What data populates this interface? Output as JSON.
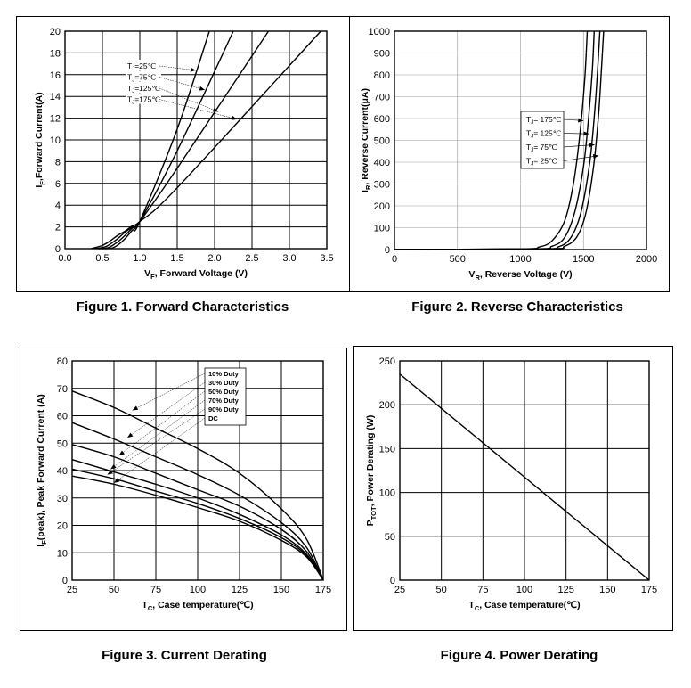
{
  "chart_data": [
    {
      "type": "line",
      "caption": "Figure 1. Forward Characteristics",
      "xlabel_main": "V",
      "xlabel_sub": "F",
      "xlabel_rest": ", Forward Voltage (V)",
      "ylabel_main": "I",
      "ylabel_sub": "F",
      "ylabel_rest": ",Forward Current(A)",
      "xlim": [
        0,
        3.5
      ],
      "ylim": [
        0,
        20
      ],
      "xticks": [
        "0.0",
        "0.5",
        "1.0",
        "1.5",
        "2.0",
        "2.5",
        "3.0",
        "3.5"
      ],
      "yticks": [
        "0",
        "2",
        "4",
        "6",
        "8",
        "10",
        "12",
        "14",
        "16",
        "18",
        "20"
      ],
      "grid": true,
      "series": [
        {
          "name": "Tj=25°C",
          "points": [
            [
              0.5,
              0
            ],
            [
              0.62,
              0.05
            ],
            [
              0.7,
              0.3
            ],
            [
              0.8,
              0.9
            ],
            [
              0.9,
              1.7
            ],
            [
              1.0,
              2.5
            ],
            [
              1.5,
              11.0
            ],
            [
              1.93,
              20.0
            ]
          ]
        },
        {
          "name": "Tj=75°C",
          "points": [
            [
              0.45,
              0
            ],
            [
              0.58,
              0.1
            ],
            [
              0.7,
              0.6
            ],
            [
              0.8,
              1.2
            ],
            [
              0.9,
              1.9
            ],
            [
              1.0,
              2.5
            ],
            [
              1.5,
              9.0
            ],
            [
              2.25,
              20.0
            ]
          ]
        },
        {
          "name": "Tj=125°C",
          "points": [
            [
              0.4,
              0
            ],
            [
              0.55,
              0.2
            ],
            [
              0.7,
              0.9
            ],
            [
              0.8,
              1.5
            ],
            [
              0.9,
              2.0
            ],
            [
              1.0,
              2.5
            ],
            [
              1.5,
              7.4
            ],
            [
              2.72,
              20.0
            ]
          ]
        },
        {
          "name": "Tj=175°C",
          "points": [
            [
              0.35,
              0
            ],
            [
              0.5,
              0.3
            ],
            [
              0.6,
              0.7
            ],
            [
              0.7,
              1.2
            ],
            [
              0.8,
              1.6
            ],
            [
              0.9,
              2.1
            ],
            [
              1.0,
              2.5
            ],
            [
              1.5,
              5.6
            ],
            [
              3.42,
              20.0
            ]
          ]
        }
      ],
      "legend_labels": [
        {
          "main": "T",
          "sub": "J",
          "rest": "=25℃"
        },
        {
          "main": "T",
          "sub": "J",
          "rest": "=75℃"
        },
        {
          "main": "T",
          "sub": "J",
          "rest": "=125℃"
        },
        {
          "main": "T",
          "sub": "J",
          "rest": "=175℃"
        }
      ],
      "legend_placement": "upper-left"
    },
    {
      "type": "line",
      "caption": "Figure 2. Reverse Characteristics",
      "xlabel_main": "V",
      "xlabel_sub": "R",
      "xlabel_rest": ", Reverse Voltage (V)",
      "ylabel_main": "I",
      "ylabel_sub": "R",
      "ylabel_rest": ", Reverse Current(μA)",
      "xlim": [
        0,
        2000
      ],
      "ylim": [
        0,
        1000
      ],
      "xticks": [
        "0",
        "500",
        "1000",
        "1500",
        "2000"
      ],
      "yticks": [
        "0",
        "100",
        "200",
        "300",
        "400",
        "500",
        "600",
        "700",
        "800",
        "900",
        "1000"
      ],
      "grid": true,
      "series": [
        {
          "name": "TJ= 175°C",
          "points": [
            [
              0,
              0
            ],
            [
              1000,
              3
            ],
            [
              1150,
              12
            ],
            [
              1250,
              40
            ],
            [
              1350,
              130
            ],
            [
              1420,
              300
            ],
            [
              1470,
              520
            ],
            [
              1510,
              780
            ],
            [
              1530,
              1000
            ]
          ]
        },
        {
          "name": "TJ= 125°C",
          "points": [
            [
              0,
              0
            ],
            [
              1100,
              3
            ],
            [
              1250,
              15
            ],
            [
              1350,
              55
            ],
            [
              1430,
              170
            ],
            [
              1500,
              380
            ],
            [
              1540,
              600
            ],
            [
              1570,
              820
            ],
            [
              1585,
              1000
            ]
          ]
        },
        {
          "name": "TJ= 75°C",
          "points": [
            [
              0,
              0
            ],
            [
              1150,
              3
            ],
            [
              1300,
              12
            ],
            [
              1400,
              55
            ],
            [
              1480,
              170
            ],
            [
              1550,
              400
            ],
            [
              1590,
              640
            ],
            [
              1615,
              850
            ],
            [
              1630,
              1000
            ]
          ]
        },
        {
          "name": "TJ= 25°C",
          "points": [
            [
              0,
              0
            ],
            [
              1200,
              3
            ],
            [
              1350,
              15
            ],
            [
              1450,
              60
            ],
            [
              1520,
              170
            ],
            [
              1580,
              380
            ],
            [
              1620,
              620
            ],
            [
              1645,
              850
            ],
            [
              1660,
              1000
            ]
          ]
        }
      ],
      "legend_labels": [
        {
          "main": "T",
          "sub": "J",
          "rest": "= 175℃"
        },
        {
          "main": "T",
          "sub": "J",
          "rest": "= 125℃"
        },
        {
          "main": "T",
          "sub": "J",
          "rest": "= 75℃"
        },
        {
          "main": "T",
          "sub": "J",
          "rest": "= 25℃"
        }
      ],
      "legend_placement": "center-right"
    },
    {
      "type": "line",
      "caption": "Figure 3. Current Derating",
      "xlabel_main": "T",
      "xlabel_sub": "C",
      "xlabel_rest": ", Case temperature(℃)",
      "ylabel_main": "I",
      "ylabel_sub": "F",
      "ylabel_rest": "(peak), Peak Forward Current (A)",
      "xlim": [
        25,
        175
      ],
      "ylim": [
        0,
        80
      ],
      "xticks": [
        "25",
        "50",
        "75",
        "100",
        "125",
        "150",
        "175"
      ],
      "yticks": [
        "0",
        "10",
        "20",
        "30",
        "40",
        "50",
        "60",
        "70",
        "80"
      ],
      "grid": true,
      "series": [
        {
          "name": "10% Duty",
          "points": [
            [
              25,
              69
            ],
            [
              50,
              63
            ],
            [
              75,
              55.5
            ],
            [
              100,
              48
            ],
            [
              125,
              39
            ],
            [
              150,
              26
            ],
            [
              165,
              15
            ],
            [
              175,
              0
            ]
          ]
        },
        {
          "name": "30% Duty",
          "points": [
            [
              25,
              57.5
            ],
            [
              50,
              51.5
            ],
            [
              75,
              45
            ],
            [
              100,
              38.5
            ],
            [
              125,
              31
            ],
            [
              150,
              21
            ],
            [
              165,
              12
            ],
            [
              175,
              0
            ]
          ]
        },
        {
          "name": "50% Duty",
          "points": [
            [
              25,
              49.5
            ],
            [
              50,
              45
            ],
            [
              75,
              39
            ],
            [
              100,
              33
            ],
            [
              125,
              27
            ],
            [
              150,
              18.5
            ],
            [
              165,
              10.5
            ],
            [
              175,
              0
            ]
          ]
        },
        {
          "name": "70% Duty",
          "points": [
            [
              25,
              44
            ],
            [
              50,
              39.5
            ],
            [
              75,
              35
            ],
            [
              100,
              30
            ],
            [
              125,
              24
            ],
            [
              150,
              16.5
            ],
            [
              165,
              9.5
            ],
            [
              175,
              0
            ]
          ]
        },
        {
          "name": "90% Duty",
          "points": [
            [
              25,
              40.5
            ],
            [
              50,
              37
            ],
            [
              75,
              32.5
            ],
            [
              100,
              28
            ],
            [
              125,
              22.5
            ],
            [
              150,
              15.5
            ],
            [
              165,
              9
            ],
            [
              175,
              0
            ]
          ]
        },
        {
          "name": "DC",
          "points": [
            [
              25,
              38
            ],
            [
              50,
              35
            ],
            [
              75,
              31
            ],
            [
              100,
              26.5
            ],
            [
              125,
              21.5
            ],
            [
              150,
              14.5
            ],
            [
              165,
              8.5
            ],
            [
              175,
              0
            ]
          ]
        }
      ],
      "legend_labels": [
        "10% Duty",
        "30% Duty",
        "50% Duty",
        "70% Duty",
        "90% Duty",
        "DC"
      ],
      "legend_placement": "top-right"
    },
    {
      "type": "line",
      "caption": "Figure 4. Power Derating",
      "xlabel_main": "T",
      "xlabel_sub": "C",
      "xlabel_rest": ", Case temperature(℃)",
      "ylabel_main": "P",
      "ylabel_sub": "TOT",
      "ylabel_rest": ", Power Derating (W)",
      "xlim": [
        25,
        175
      ],
      "ylim": [
        0,
        250
      ],
      "xticks": [
        "25",
        "50",
        "75",
        "100",
        "125",
        "150",
        "175"
      ],
      "yticks": [
        "0",
        "50",
        "100",
        "150",
        "200",
        "250"
      ],
      "grid": true,
      "series": [
        {
          "name": "PTOT",
          "points": [
            [
              25,
              235
            ],
            [
              175,
              0
            ]
          ]
        }
      ]
    }
  ]
}
